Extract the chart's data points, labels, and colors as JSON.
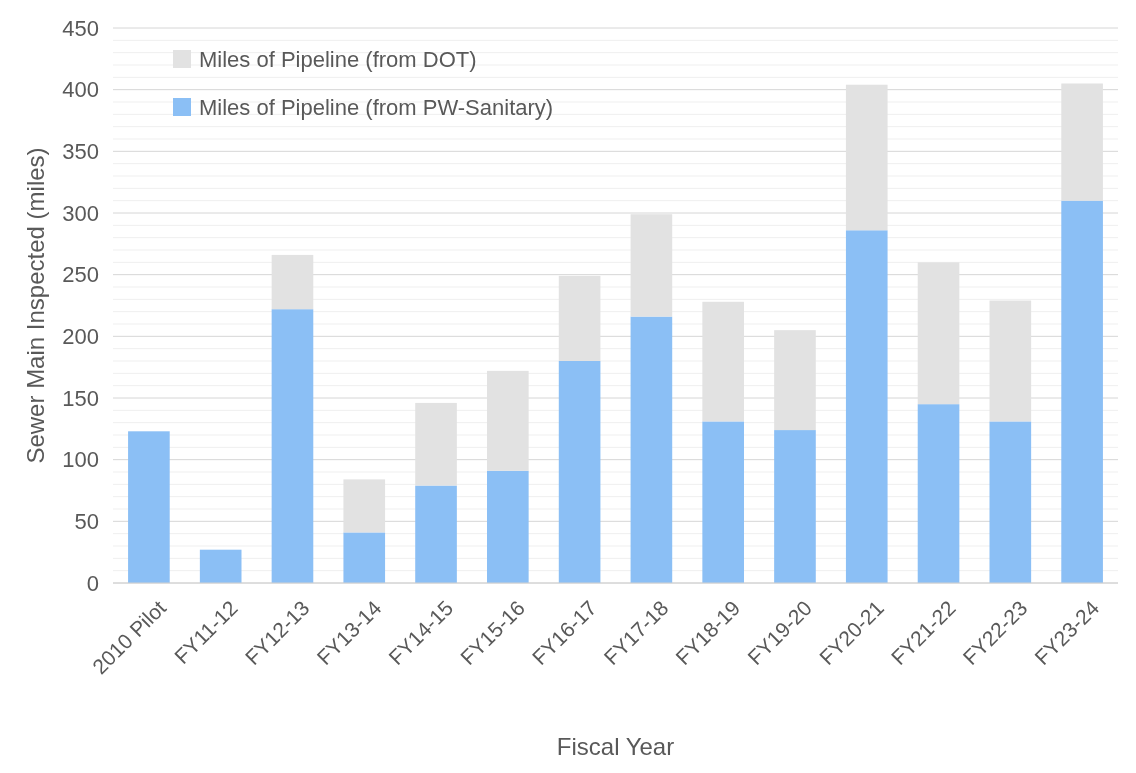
{
  "chart_data": {
    "type": "bar",
    "stacked": true,
    "xlabel": "Fiscal Year",
    "ylabel": "Sewer Main Inspected (miles)",
    "categories": [
      "2010 Pilot",
      "FY11-12",
      "FY12-13",
      "FY13-14",
      "FY14-15",
      "FY15-16",
      "FY16-17",
      "FY17-18",
      "FY18-19",
      "FY19-20",
      "FY20-21",
      "FY21-22",
      "FY22-23",
      "FY23-24"
    ],
    "series": [
      {
        "name": "Miles of Pipeline (from PW-Sanitary)",
        "color": "#8bbff5",
        "values": [
          123,
          27,
          222,
          41,
          79,
          91,
          180,
          216,
          131,
          124,
          286,
          145,
          131,
          310
        ]
      },
      {
        "name": "Miles of Pipeline (from DOT)",
        "color": "#e2e2e2",
        "values": [
          null,
          null,
          44,
          43,
          67,
          81,
          69,
          83,
          97,
          81,
          118,
          115,
          98,
          95
        ]
      }
    ],
    "ylim": [
      0,
      450
    ],
    "yticks": [
      0,
      {
        "value": 10,
        "label": null
      },
      {
        "value": 20,
        "label": null
      },
      {
        "value": 30,
        "label": null
      },
      {
        "value": 40,
        "label": null
      },
      50,
      {
        "value": 60,
        "label": null
      },
      {
        "value": 70,
        "label": null
      },
      {
        "value": 80,
        "label": null
      },
      {
        "value": 90,
        "label": null
      },
      100,
      {
        "value": 110,
        "label": null
      },
      {
        "value": 120,
        "label": null
      },
      {
        "value": 130,
        "label": null
      },
      {
        "value": 140,
        "label": null
      },
      150,
      {
        "value": 160,
        "label": null
      },
      {
        "value": 170,
        "label": null
      },
      {
        "value": 180,
        "label": null
      },
      {
        "value": 190,
        "label": null
      },
      200,
      {
        "value": 210,
        "label": null
      },
      {
        "value": 220,
        "label": null
      },
      {
        "value": 230,
        "label": null
      },
      {
        "value": 240,
        "label": null
      },
      250,
      {
        "value": 260,
        "label": null
      },
      {
        "value": 270,
        "label": null
      },
      {
        "value": 280,
        "label": null
      },
      {
        "value": 290,
        "label": null
      },
      300,
      {
        "value": 310,
        "label": null
      },
      {
        "value": 320,
        "label": null
      },
      {
        "value": 330,
        "label": null
      },
      {
        "value": 340,
        "label": null
      },
      350,
      {
        "value": 360,
        "label": null
      },
      {
        "value": 370,
        "label": null
      },
      {
        "value": 380,
        "label": null
      },
      {
        "value": 390,
        "label": null
      },
      400,
      {
        "value": 410,
        "label": null
      },
      {
        "value": 420,
        "label": null
      },
      {
        "value": 430,
        "label": null
      },
      {
        "value": 440,
        "label": null
      },
      450
    ],
    "grid": "y",
    "legend": "top left"
  }
}
